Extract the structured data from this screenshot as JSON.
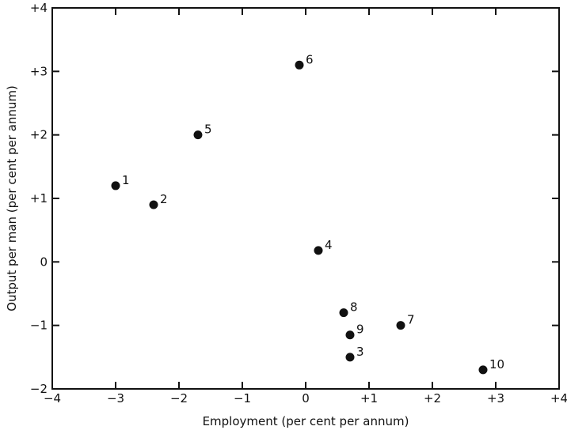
{
  "chart_data": {
    "type": "scatter",
    "title": "",
    "xlabel": "Employment (per cent per annum)",
    "ylabel": "Output per man (per cent per annum)",
    "xlim": [
      -4,
      4
    ],
    "ylim": [
      -2,
      4
    ],
    "x_ticks": [
      -4,
      -3,
      -2,
      -1,
      0,
      1,
      2,
      3,
      4
    ],
    "x_tick_labels": [
      "−4",
      "−3",
      "−2",
      "−1",
      "0",
      "+1",
      "+2",
      "+3",
      "+4"
    ],
    "y_ticks": [
      -2,
      -1,
      0,
      1,
      2,
      3,
      4
    ],
    "y_tick_labels": [
      "−2",
      "−1",
      "0",
      "+1",
      "+2",
      "+3",
      "+4"
    ],
    "grid": false,
    "legend": "none",
    "marker_color": "#111111",
    "points": [
      {
        "label": "1",
        "x": -3.0,
        "y": 1.2
      },
      {
        "label": "2",
        "x": -2.4,
        "y": 0.9
      },
      {
        "label": "3",
        "x": 0.7,
        "y": -1.5
      },
      {
        "label": "4",
        "x": 0.2,
        "y": 0.18
      },
      {
        "label": "5",
        "x": -1.7,
        "y": 2.0
      },
      {
        "label": "6",
        "x": -0.1,
        "y": 3.1
      },
      {
        "label": "7",
        "x": 1.5,
        "y": -1.0
      },
      {
        "label": "8",
        "x": 0.6,
        "y": -0.8
      },
      {
        "label": "9",
        "x": 0.7,
        "y": -1.15
      },
      {
        "label": "10",
        "x": 2.8,
        "y": -1.7
      }
    ]
  }
}
